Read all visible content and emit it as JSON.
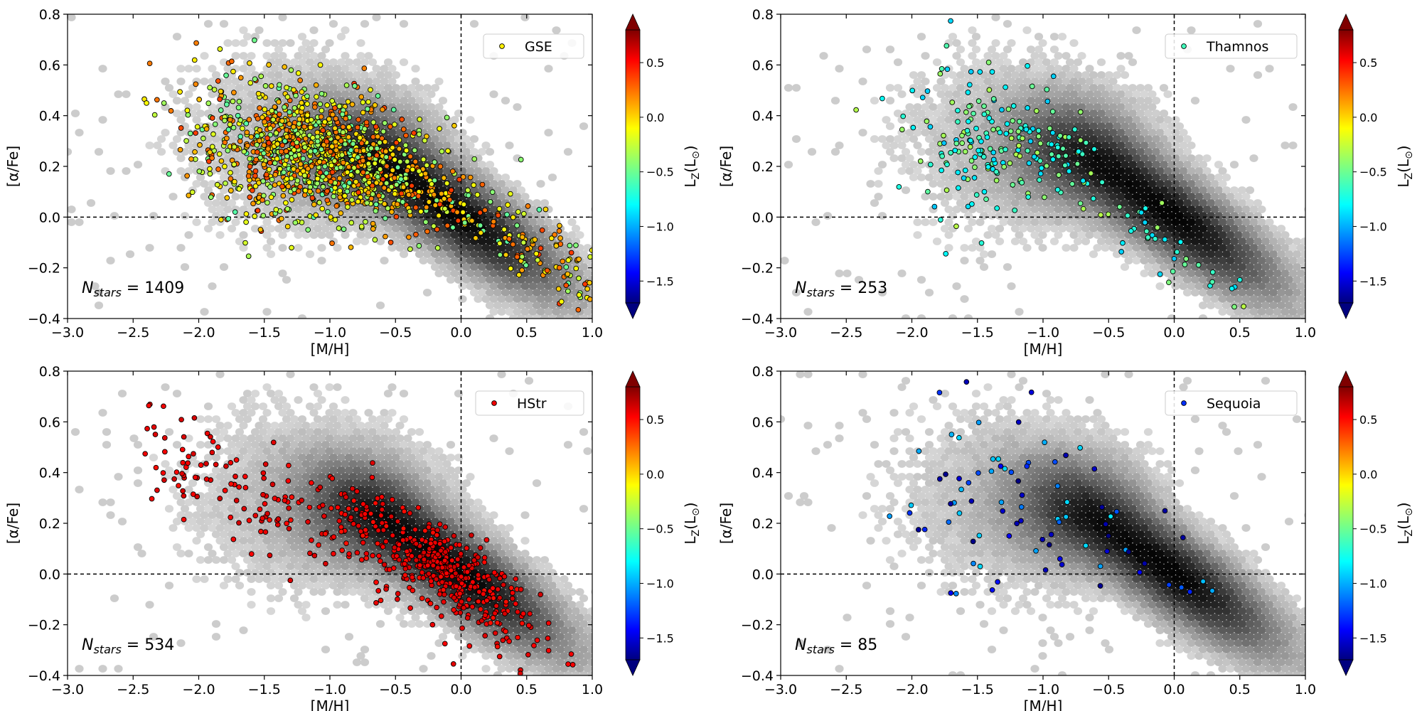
{
  "chart_data": [
    {
      "type": "scatter",
      "xlabel": "[M/H]",
      "ylabel": "[α/Fe]",
      "xlim": [
        -3.0,
        1.0
      ],
      "ylim": [
        -0.4,
        0.8
      ],
      "xticks": [
        "−3.0",
        "−2.5",
        "−2.0",
        "−1.5",
        "−1.0",
        "−0.5",
        "0.0",
        "0.5",
        "1.0"
      ],
      "yticks": [
        "−0.4",
        "−0.2",
        "0.0",
        "0.2",
        "0.4",
        "0.6",
        "0.8"
      ],
      "reference_lines": {
        "x": 0.0,
        "y": 0.0,
        "style": "dashed"
      },
      "background": "grayscale hexbin density of all stars",
      "legend": {
        "label": "GSE",
        "placement": "top-right"
      },
      "annotation": {
        "prefix": "N",
        "subscript": "stars",
        "text": " = 1409",
        "count": 1409
      },
      "colorbar": {
        "label": "L_Z(L_⊙)",
        "min": -1.7,
        "max": 0.8,
        "colormap": "jet",
        "ticks": [
          "−1.5",
          "−1.0",
          "−0.5",
          "0.0",
          "0.5"
        ],
        "extend": "both"
      },
      "series": [
        {
          "n": 1409,
          "center": [
            -1.15,
            0.25
          ],
          "spread": [
            0.42,
            0.13
          ],
          "tail": [
            [
              -1.0,
              0.3
            ],
            [
              1.0,
              -0.25
            ]
          ],
          "lz_range": [
            -0.55,
            0.35
          ]
        }
      ]
    },
    {
      "type": "scatter",
      "xlabel": "[M/H]",
      "ylabel": "[α/Fe]",
      "xlim": [
        -3.0,
        1.0
      ],
      "ylim": [
        -0.4,
        0.8
      ],
      "xticks": [
        "−3.0",
        "−2.5",
        "−2.0",
        "−1.5",
        "−1.0",
        "−0.5",
        "0.0",
        "0.5",
        "1.0"
      ],
      "yticks": [
        "−0.4",
        "−0.2",
        "0.0",
        "0.2",
        "0.4",
        "0.6",
        "0.8"
      ],
      "reference_lines": {
        "x": 0.0,
        "y": 0.0,
        "style": "dashed"
      },
      "background": "grayscale hexbin density of all stars",
      "legend": {
        "label": "Thamnos",
        "placement": "top-right"
      },
      "annotation": {
        "prefix": "N",
        "subscript": "stars",
        "text": " = 253",
        "count": 253
      },
      "colorbar": {
        "label": "L_Z(L_⊙)",
        "min": -1.7,
        "max": 0.8,
        "colormap": "jet",
        "ticks": [
          "−1.5",
          "−1.0",
          "−0.5",
          "0.0",
          "0.5"
        ],
        "extend": "both"
      },
      "series": [
        {
          "n": 253,
          "center": [
            -1.35,
            0.3
          ],
          "spread": [
            0.35,
            0.14
          ],
          "tail": [
            [
              -0.9,
              0.2
            ],
            [
              0.45,
              -0.3
            ]
          ],
          "lz_range": [
            -0.9,
            -0.3
          ]
        }
      ]
    },
    {
      "type": "scatter",
      "xlabel": "[M/H]",
      "ylabel": "[α/Fe]",
      "xlim": [
        -3.0,
        1.0
      ],
      "ylim": [
        -0.4,
        0.8
      ],
      "xticks": [
        "−3.0",
        "−2.5",
        "−2.0",
        "−1.5",
        "−1.0",
        "−0.5",
        "0.0",
        "0.5",
        "1.0"
      ],
      "yticks": [
        "−0.4",
        "−0.2",
        "0.0",
        "0.2",
        "0.4",
        "0.6",
        "0.8"
      ],
      "reference_lines": {
        "x": 0.0,
        "y": 0.0,
        "style": "dashed"
      },
      "background": "grayscale hexbin density of all stars",
      "legend": {
        "label": "HStr",
        "placement": "top-right"
      },
      "annotation": {
        "prefix": "N",
        "subscript": "stars",
        "text": " = 534",
        "count": 534
      },
      "colorbar": {
        "label": "L_Z(L_⊙)",
        "min": -1.7,
        "max": 0.8,
        "colormap": "jet",
        "ticks": [
          "−1.5",
          "−1.0",
          "−0.5",
          "0.0",
          "0.5"
        ],
        "extend": "both"
      },
      "series": [
        {
          "n": 534,
          "center": [
            -0.6,
            0.15
          ],
          "spread": [
            0.55,
            0.15
          ],
          "trend": [
            [
              -2.4,
              0.5
            ],
            [
              0.6,
              -0.25
            ]
          ],
          "lz_range": [
            0.45,
            0.6
          ]
        }
      ]
    },
    {
      "type": "scatter",
      "xlabel": "[M/H]",
      "ylabel": "[α/Fe]",
      "xlim": [
        -3.0,
        1.0
      ],
      "ylim": [
        -0.4,
        0.8
      ],
      "xticks": [
        "−3.0",
        "−2.5",
        "−2.0",
        "−1.5",
        "−1.0",
        "−0.5",
        "0.0",
        "0.5",
        "1.0"
      ],
      "yticks": [
        "−0.4",
        "−0.2",
        "0.0",
        "0.2",
        "0.4",
        "0.6",
        "0.8"
      ],
      "reference_lines": {
        "x": 0.0,
        "y": 0.0,
        "style": "dashed"
      },
      "background": "grayscale hexbin density of all stars",
      "legend": {
        "label": "Sequoia",
        "placement": "top-right"
      },
      "annotation": {
        "prefix": "N",
        "subscript": "stars",
        "text": " = 85",
        "count": 85
      },
      "colorbar": {
        "label": "L_Z(L_⊙)",
        "min": -1.7,
        "max": 0.8,
        "colormap": "jet",
        "ticks": [
          "−1.5",
          "−1.0",
          "−0.5",
          "0.0",
          "0.5"
        ],
        "extend": "both"
      },
      "series": [
        {
          "n": 85,
          "center": [
            -1.3,
            0.25
          ],
          "spread": [
            0.35,
            0.2
          ],
          "tail": [
            [
              -0.7,
              0.25
            ],
            [
              0.25,
              -0.05
            ]
          ],
          "lz_range": [
            -1.75,
            -0.8
          ]
        }
      ]
    }
  ]
}
